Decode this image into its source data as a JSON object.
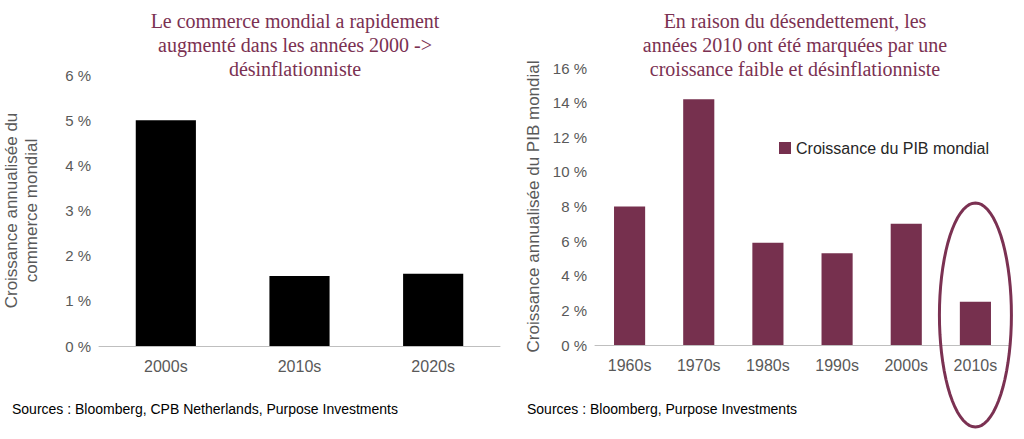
{
  "chart_data": [
    {
      "type": "bar",
      "title": "Le commerce mondial a rapidement\naugmenté dans les années 2000 ->\ndésinflationniste",
      "y_label": "Croissance annualisée du\ncommerce mondial",
      "source": "Sources : Bloomberg, CPB Netherlands, Purpose Investments",
      "categories": [
        "2000s",
        "2010s",
        "2020s"
      ],
      "values": [
        5.0,
        1.55,
        1.6
      ],
      "color": "#000000",
      "ylim": [
        0,
        6
      ],
      "yticks": [
        {
          "value": 0,
          "label": "0 %"
        },
        {
          "value": 1,
          "label": "1 %"
        },
        {
          "value": 2,
          "label": "2 %"
        },
        {
          "value": 3,
          "label": "3 %"
        },
        {
          "value": 4,
          "label": "4 %"
        },
        {
          "value": 5,
          "label": "5 %"
        },
        {
          "value": 6,
          "label": "6 %"
        }
      ],
      "grid": false
    },
    {
      "type": "bar",
      "title": "En raison du désendettement, les\nannées 2010 ont été marquées par une\ncroissance faible et désinflationniste",
      "y_label": "Croissance annualisée du PIB mondial",
      "source": "Sources : Bloomberg, Purpose Investments",
      "categories": [
        "1960s",
        "1970s",
        "1980s",
        "1990s",
        "2000s",
        "2010s"
      ],
      "series": [
        {
          "name": "Croissance du PIB mondial",
          "color": "#76304e",
          "values": [
            8.0,
            14.2,
            5.9,
            5.3,
            7.0,
            2.5
          ]
        }
      ],
      "ylim": [
        0,
        16
      ],
      "yticks": [
        {
          "value": 0,
          "label": "0 %"
        },
        {
          "value": 2,
          "label": "2 %"
        },
        {
          "value": 4,
          "label": "4 %"
        },
        {
          "value": 6,
          "label": "6 %"
        },
        {
          "value": 8,
          "label": "8 %"
        },
        {
          "value": 10,
          "label": "10 %"
        },
        {
          "value": 12,
          "label": "12 %"
        },
        {
          "value": 14,
          "label": "14 %"
        },
        {
          "value": 16,
          "label": "16 %"
        }
      ],
      "grid": false,
      "legend": "upper right"
    }
  ]
}
